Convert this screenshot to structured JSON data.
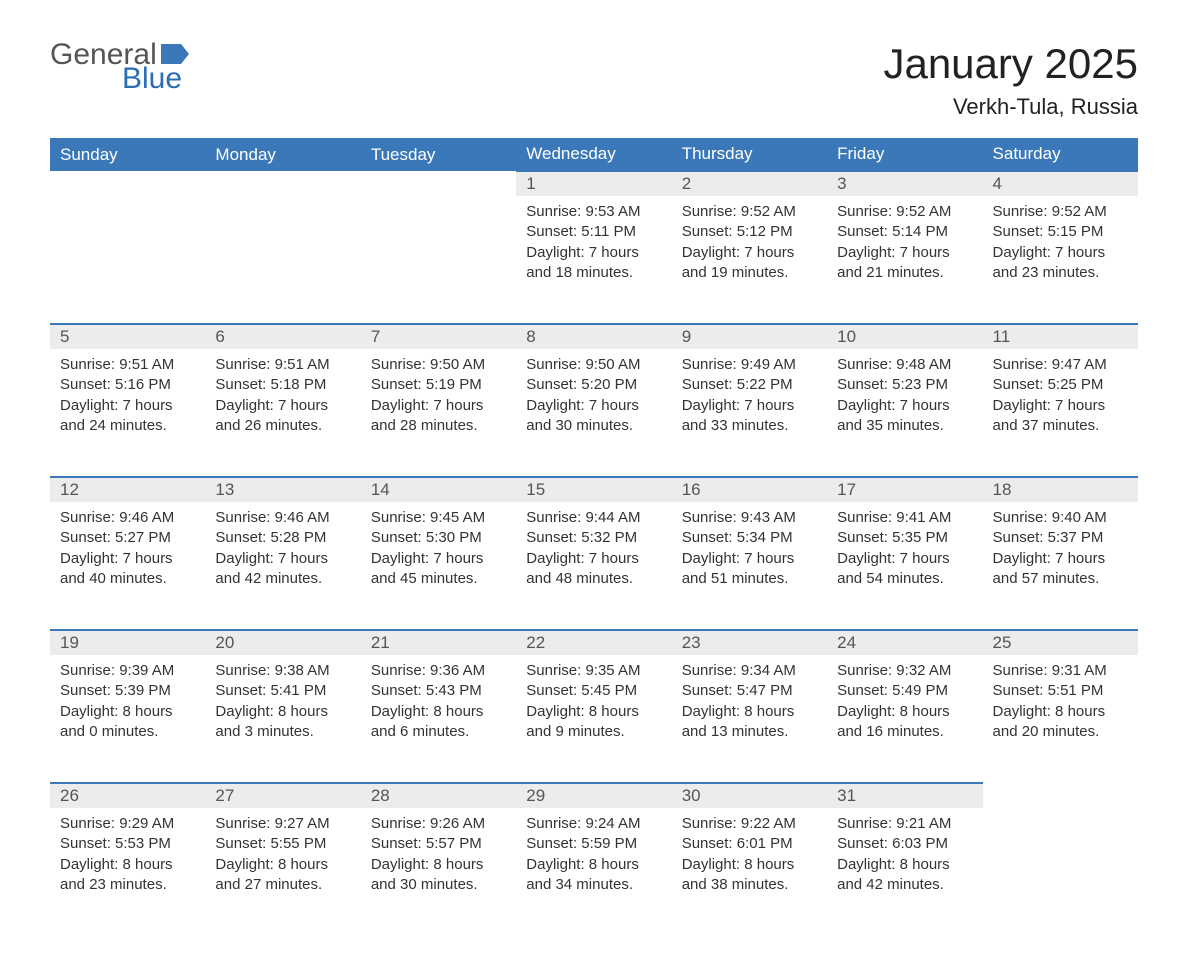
{
  "logo": {
    "general": "General",
    "blue": "Blue",
    "flag_color": "#3a78b9"
  },
  "title": "January 2025",
  "location": "Verkh-Tula, Russia",
  "colors": {
    "header_bg": "#3a78b9",
    "header_text": "#ffffff",
    "daynum_bg": "#ececec",
    "daynum_border": "#3a78b9",
    "text": "#333333",
    "background": "#ffffff"
  },
  "day_names": [
    "Sunday",
    "Monday",
    "Tuesday",
    "Wednesday",
    "Thursday",
    "Friday",
    "Saturday"
  ],
  "weeks": [
    [
      null,
      null,
      null,
      {
        "n": "1",
        "sunrise": "Sunrise: 9:53 AM",
        "sunset": "Sunset: 5:11 PM",
        "day1": "Daylight: 7 hours",
        "day2": "and 18 minutes."
      },
      {
        "n": "2",
        "sunrise": "Sunrise: 9:52 AM",
        "sunset": "Sunset: 5:12 PM",
        "day1": "Daylight: 7 hours",
        "day2": "and 19 minutes."
      },
      {
        "n": "3",
        "sunrise": "Sunrise: 9:52 AM",
        "sunset": "Sunset: 5:14 PM",
        "day1": "Daylight: 7 hours",
        "day2": "and 21 minutes."
      },
      {
        "n": "4",
        "sunrise": "Sunrise: 9:52 AM",
        "sunset": "Sunset: 5:15 PM",
        "day1": "Daylight: 7 hours",
        "day2": "and 23 minutes."
      }
    ],
    [
      {
        "n": "5",
        "sunrise": "Sunrise: 9:51 AM",
        "sunset": "Sunset: 5:16 PM",
        "day1": "Daylight: 7 hours",
        "day2": "and 24 minutes."
      },
      {
        "n": "6",
        "sunrise": "Sunrise: 9:51 AM",
        "sunset": "Sunset: 5:18 PM",
        "day1": "Daylight: 7 hours",
        "day2": "and 26 minutes."
      },
      {
        "n": "7",
        "sunrise": "Sunrise: 9:50 AM",
        "sunset": "Sunset: 5:19 PM",
        "day1": "Daylight: 7 hours",
        "day2": "and 28 minutes."
      },
      {
        "n": "8",
        "sunrise": "Sunrise: 9:50 AM",
        "sunset": "Sunset: 5:20 PM",
        "day1": "Daylight: 7 hours",
        "day2": "and 30 minutes."
      },
      {
        "n": "9",
        "sunrise": "Sunrise: 9:49 AM",
        "sunset": "Sunset: 5:22 PM",
        "day1": "Daylight: 7 hours",
        "day2": "and 33 minutes."
      },
      {
        "n": "10",
        "sunrise": "Sunrise: 9:48 AM",
        "sunset": "Sunset: 5:23 PM",
        "day1": "Daylight: 7 hours",
        "day2": "and 35 minutes."
      },
      {
        "n": "11",
        "sunrise": "Sunrise: 9:47 AM",
        "sunset": "Sunset: 5:25 PM",
        "day1": "Daylight: 7 hours",
        "day2": "and 37 minutes."
      }
    ],
    [
      {
        "n": "12",
        "sunrise": "Sunrise: 9:46 AM",
        "sunset": "Sunset: 5:27 PM",
        "day1": "Daylight: 7 hours",
        "day2": "and 40 minutes."
      },
      {
        "n": "13",
        "sunrise": "Sunrise: 9:46 AM",
        "sunset": "Sunset: 5:28 PM",
        "day1": "Daylight: 7 hours",
        "day2": "and 42 minutes."
      },
      {
        "n": "14",
        "sunrise": "Sunrise: 9:45 AM",
        "sunset": "Sunset: 5:30 PM",
        "day1": "Daylight: 7 hours",
        "day2": "and 45 minutes."
      },
      {
        "n": "15",
        "sunrise": "Sunrise: 9:44 AM",
        "sunset": "Sunset: 5:32 PM",
        "day1": "Daylight: 7 hours",
        "day2": "and 48 minutes."
      },
      {
        "n": "16",
        "sunrise": "Sunrise: 9:43 AM",
        "sunset": "Sunset: 5:34 PM",
        "day1": "Daylight: 7 hours",
        "day2": "and 51 minutes."
      },
      {
        "n": "17",
        "sunrise": "Sunrise: 9:41 AM",
        "sunset": "Sunset: 5:35 PM",
        "day1": "Daylight: 7 hours",
        "day2": "and 54 minutes."
      },
      {
        "n": "18",
        "sunrise": "Sunrise: 9:40 AM",
        "sunset": "Sunset: 5:37 PM",
        "day1": "Daylight: 7 hours",
        "day2": "and 57 minutes."
      }
    ],
    [
      {
        "n": "19",
        "sunrise": "Sunrise: 9:39 AM",
        "sunset": "Sunset: 5:39 PM",
        "day1": "Daylight: 8 hours",
        "day2": "and 0 minutes."
      },
      {
        "n": "20",
        "sunrise": "Sunrise: 9:38 AM",
        "sunset": "Sunset: 5:41 PM",
        "day1": "Daylight: 8 hours",
        "day2": "and 3 minutes."
      },
      {
        "n": "21",
        "sunrise": "Sunrise: 9:36 AM",
        "sunset": "Sunset: 5:43 PM",
        "day1": "Daylight: 8 hours",
        "day2": "and 6 minutes."
      },
      {
        "n": "22",
        "sunrise": "Sunrise: 9:35 AM",
        "sunset": "Sunset: 5:45 PM",
        "day1": "Daylight: 8 hours",
        "day2": "and 9 minutes."
      },
      {
        "n": "23",
        "sunrise": "Sunrise: 9:34 AM",
        "sunset": "Sunset: 5:47 PM",
        "day1": "Daylight: 8 hours",
        "day2": "and 13 minutes."
      },
      {
        "n": "24",
        "sunrise": "Sunrise: 9:32 AM",
        "sunset": "Sunset: 5:49 PM",
        "day1": "Daylight: 8 hours",
        "day2": "and 16 minutes."
      },
      {
        "n": "25",
        "sunrise": "Sunrise: 9:31 AM",
        "sunset": "Sunset: 5:51 PM",
        "day1": "Daylight: 8 hours",
        "day2": "and 20 minutes."
      }
    ],
    [
      {
        "n": "26",
        "sunrise": "Sunrise: 9:29 AM",
        "sunset": "Sunset: 5:53 PM",
        "day1": "Daylight: 8 hours",
        "day2": "and 23 minutes."
      },
      {
        "n": "27",
        "sunrise": "Sunrise: 9:27 AM",
        "sunset": "Sunset: 5:55 PM",
        "day1": "Daylight: 8 hours",
        "day2": "and 27 minutes."
      },
      {
        "n": "28",
        "sunrise": "Sunrise: 9:26 AM",
        "sunset": "Sunset: 5:57 PM",
        "day1": "Daylight: 8 hours",
        "day2": "and 30 minutes."
      },
      {
        "n": "29",
        "sunrise": "Sunrise: 9:24 AM",
        "sunset": "Sunset: 5:59 PM",
        "day1": "Daylight: 8 hours",
        "day2": "and 34 minutes."
      },
      {
        "n": "30",
        "sunrise": "Sunrise: 9:22 AM",
        "sunset": "Sunset: 6:01 PM",
        "day1": "Daylight: 8 hours",
        "day2": "and 38 minutes."
      },
      {
        "n": "31",
        "sunrise": "Sunrise: 9:21 AM",
        "sunset": "Sunset: 6:03 PM",
        "day1": "Daylight: 8 hours",
        "day2": "and 42 minutes."
      },
      null
    ]
  ]
}
